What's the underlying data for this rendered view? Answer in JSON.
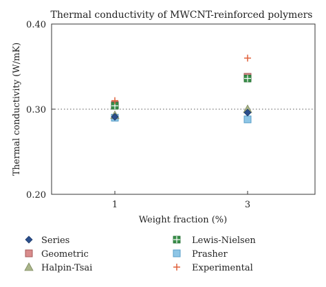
{
  "chart_data": {
    "type": "scatter",
    "title": "Thermal conductivity of MWCNT-reinforced polymers",
    "xlabel": "Weight fraction (%)",
    "ylabel": "Thermal conductivity (W/mK)",
    "categories": [
      "1",
      "3"
    ],
    "y_ticks": [
      "0.20",
      "0.30",
      "0.40"
    ],
    "ylim": [
      0.2,
      0.4
    ],
    "grid": "horizontal dotted at 0.30 and 0.40",
    "legend_position": "bottom",
    "series": [
      {
        "name": "Series",
        "marker": "diamond",
        "color": "#2b4f8c",
        "values": [
          0.291,
          0.296
        ]
      },
      {
        "name": "Geometric",
        "marker": "square",
        "color": "#d98c8c",
        "values": [
          0.305,
          0.338
        ]
      },
      {
        "name": "Halpin-Tsai",
        "marker": "triangle",
        "color": "#a9b48a",
        "values": [
          0.293,
          0.3
        ]
      },
      {
        "name": "Lewis-Nielsen",
        "marker": "plus-box",
        "color": "#3a8f4a",
        "values": [
          0.304,
          0.336
        ]
      },
      {
        "name": "Prasher",
        "marker": "square",
        "color": "#8ec6e6",
        "values": [
          0.29,
          0.288
        ]
      },
      {
        "name": "Experimental",
        "marker": "plus",
        "color": "#e0603a",
        "values": [
          0.31,
          0.36
        ]
      }
    ]
  }
}
